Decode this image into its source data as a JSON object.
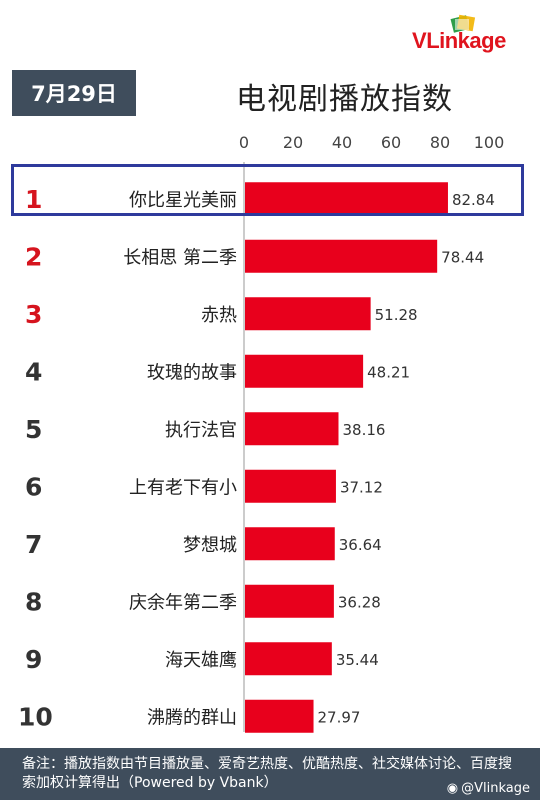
{
  "brand": {
    "logo_text_v": "V",
    "logo_text_rest": "Linkage"
  },
  "date": "7月29日",
  "title": "电视剧播放指数",
  "colors": {
    "bar": "#e8001c",
    "rank_top": "#d6141e",
    "rank_other": "#333333",
    "badge_bg": "#3f4d5c",
    "highlight": "#2e3a9c"
  },
  "chart_data": {
    "type": "bar",
    "orientation": "horizontal",
    "title": "电视剧播放指数",
    "xlim": [
      0,
      100
    ],
    "xticks": [
      "0",
      "20",
      "40",
      "60",
      "80",
      "100"
    ],
    "ranks": [
      "1",
      "2",
      "3",
      "4",
      "5",
      "6",
      "7",
      "8",
      "9",
      "10"
    ],
    "categories": [
      "你比星光美丽",
      "长相思 第二季",
      "赤热",
      "玫瑰的故事",
      "执行法官",
      "上有老下有小",
      "梦想城",
      "庆余年第二季",
      "海天雄鹰",
      "沸腾的群山"
    ],
    "values": [
      82.84,
      78.44,
      51.28,
      48.21,
      38.16,
      37.12,
      36.64,
      36.28,
      35.44,
      27.97
    ],
    "value_labels": [
      "82.84",
      "78.44",
      "51.28",
      "48.21",
      "38.16",
      "37.12",
      "36.64",
      "36.28",
      "35.44",
      "27.97"
    ],
    "grid": false
  },
  "footer": {
    "note": "备注：播放指数由节目播放量、爱奇艺热度、优酷热度、社交媒体讨论、百度搜索加权计算得出（Powered by Vbank）",
    "watermark": "@Vlinkage"
  }
}
